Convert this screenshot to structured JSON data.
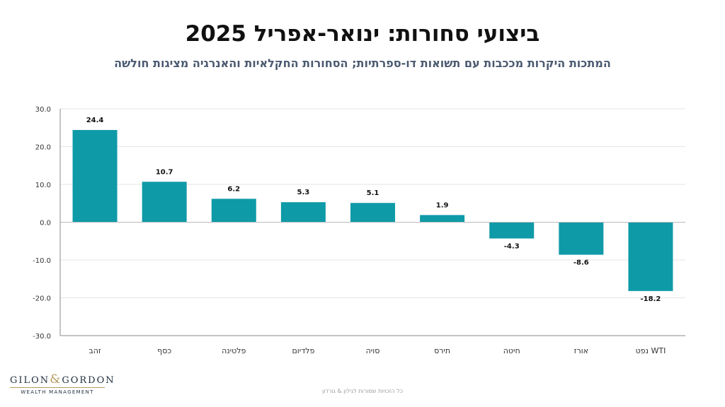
{
  "title": "ביצועי סחורות: ינואר-אפריל 2025",
  "subtitle": "המתכות היקרות מככבות עם תשואות דו-ספרתיות; הסחורות החקלאיות והאנרגיה מציגות חולשה",
  "chart_data": {
    "type": "bar",
    "categories": [
      "זהב",
      "כסף",
      "פלטינה",
      "פלדיום",
      "סויה",
      "תירס",
      "חיטה",
      "אורז",
      "WTI נפט"
    ],
    "values": [
      24.4,
      10.7,
      6.2,
      5.3,
      5.1,
      1.9,
      -4.3,
      -8.6,
      -18.2
    ],
    "value_labels": [
      "24.4",
      "10.7",
      "6.2",
      "5.3",
      "5.1",
      "1.9",
      "-4.3",
      "-8.6",
      "-18.2"
    ],
    "ylim": [
      -30,
      30
    ],
    "yticks": [
      30,
      20,
      10,
      0,
      -10,
      -20,
      -30
    ],
    "ytick_labels": [
      "30.0",
      "20.0",
      "10.0",
      "0.0",
      "-10.0",
      "-20.0",
      "-30.0"
    ],
    "grid": true,
    "bar_color": "#0f9aa8"
  },
  "logo": {
    "left": "GILON",
    "amp": "&",
    "right": "GORDON",
    "tagline": "WEALTH MANAGEMENT"
  },
  "footer_note": "כל הזכויות שמורות לגילון & גורדון"
}
